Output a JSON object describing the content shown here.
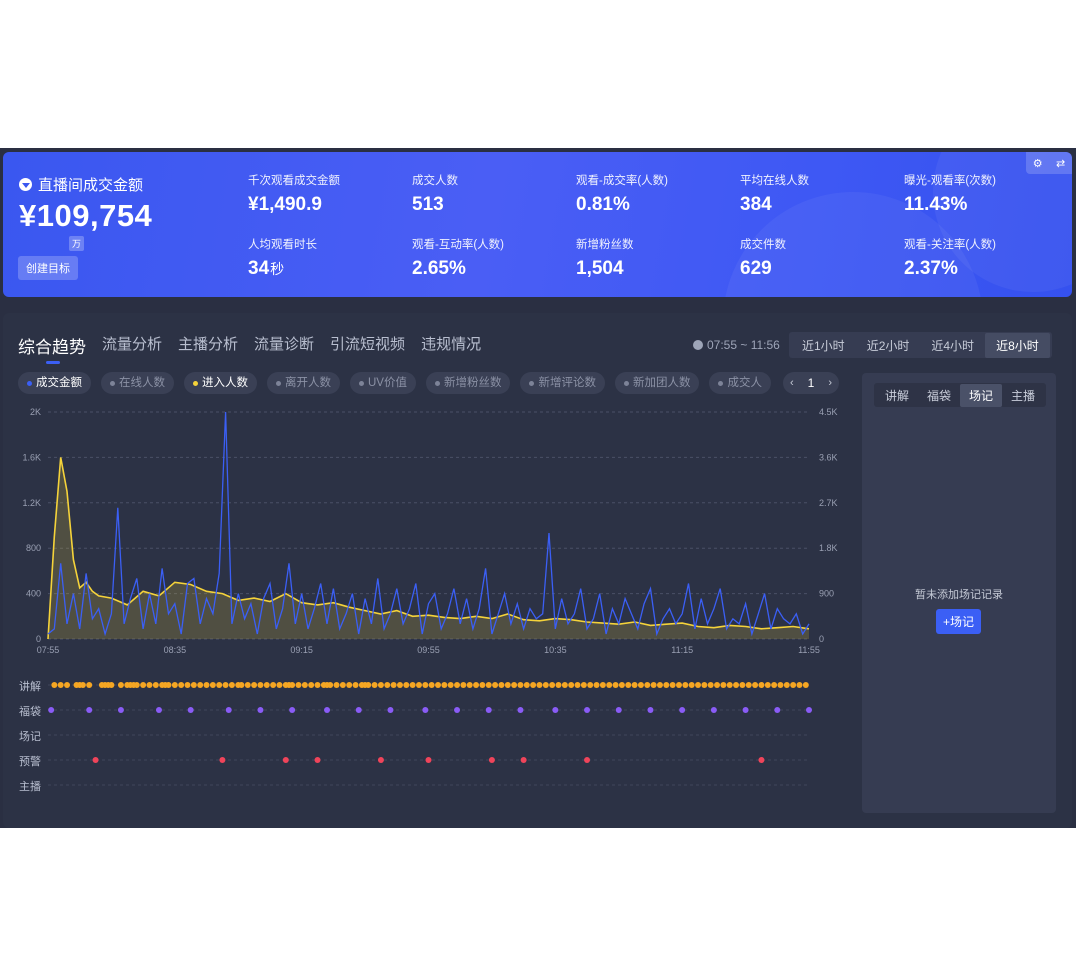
{
  "banner": {
    "gmv_title": "直播间成交金额",
    "gmv_value": "¥109,754",
    "gmv_unit_badge": "万",
    "create_target": "创建目标",
    "metrics": [
      {
        "label": "千次观看成交金额",
        "value": "¥1,490.9",
        "unit": ""
      },
      {
        "label": "成交人数",
        "value": "513",
        "unit": ""
      },
      {
        "label": "观看-成交率(人数)",
        "value": "0.81%",
        "unit": ""
      },
      {
        "label": "平均在线人数",
        "value": "384",
        "unit": ""
      },
      {
        "label": "曝光-观看率(次数)",
        "value": "11.43%",
        "unit": ""
      },
      {
        "label": "人均观看时长",
        "value": "34",
        "unit": "秒"
      },
      {
        "label": "观看-互动率(人数)",
        "value": "2.65%",
        "unit": ""
      },
      {
        "label": "新增粉丝数",
        "value": "1,504",
        "unit": ""
      },
      {
        "label": "成交件数",
        "value": "629",
        "unit": ""
      },
      {
        "label": "观看-关注率(人数)",
        "value": "2.37%",
        "unit": ""
      }
    ],
    "corner_icons": [
      "gear-icon",
      "swap-icon"
    ]
  },
  "tabs": [
    "综合趋势",
    "流量分析",
    "主播分析",
    "流量诊断",
    "引流短视频",
    "违规情况"
  ],
  "time_range": "07:55 ~ 11:56",
  "periods": [
    {
      "label": "近1小时",
      "active": false
    },
    {
      "label": "近2小时",
      "active": false
    },
    {
      "label": "近4小时",
      "active": false
    },
    {
      "label": "近8小时",
      "active": true
    }
  ],
  "chips": [
    {
      "label": "成交金额",
      "on": true,
      "dot": "#3b5ff5"
    },
    {
      "label": "在线人数",
      "on": false,
      "dot": "#7d8398"
    },
    {
      "label": "进入人数",
      "on": true,
      "dot": "#f5d33a"
    },
    {
      "label": "离开人数",
      "on": false,
      "dot": "#7d8398"
    },
    {
      "label": "UV价值",
      "on": false,
      "dot": "#7d8398"
    },
    {
      "label": "新增粉丝数",
      "on": false,
      "dot": "#7d8398"
    },
    {
      "label": "新增评论数",
      "on": false,
      "dot": "#7d8398"
    },
    {
      "label": "新加团人数",
      "on": false,
      "dot": "#7d8398"
    },
    {
      "label": "成交人",
      "on": false,
      "dot": "#7d8398"
    }
  ],
  "pager": {
    "prev": "‹",
    "page": "1",
    "next": "›"
  },
  "side_panel": {
    "tabs": [
      {
        "label": "讲解",
        "active": false
      },
      {
        "label": "福袋",
        "active": false
      },
      {
        "label": "场记",
        "active": true
      },
      {
        "label": "主播",
        "active": false
      }
    ],
    "empty_message": "暂未添加场记记录",
    "add_button": "+场记"
  },
  "event_rows": [
    {
      "label": "讲解",
      "color": "#f5a623",
      "times": [
        2,
        4,
        6,
        9,
        10,
        11,
        13,
        17,
        18,
        19,
        20,
        23,
        25,
        26,
        27,
        28,
        30,
        32,
        34,
        36,
        37,
        38,
        40,
        42,
        44,
        46,
        48,
        50,
        52,
        54,
        56,
        58,
        60,
        61,
        63,
        65,
        67,
        69,
        71,
        73,
        75,
        76,
        77,
        79,
        81,
        83,
        85,
        87,
        88,
        89,
        91,
        93,
        95,
        97,
        99,
        100,
        101,
        103,
        105,
        107,
        109,
        111,
        113,
        115,
        117,
        119,
        121,
        123,
        125,
        127,
        129,
        131,
        133,
        135,
        137,
        139,
        141,
        143,
        145,
        147,
        149,
        151,
        153,
        155,
        157,
        159,
        161,
        163,
        165,
        167,
        169,
        171,
        173,
        175,
        177,
        179,
        181,
        183,
        185,
        187,
        189,
        191,
        193,
        195,
        197,
        199,
        201,
        203,
        205,
        207,
        209,
        211,
        213,
        215,
        217,
        219,
        221,
        223,
        225,
        227,
        229,
        231,
        233,
        235,
        237,
        239
      ]
    },
    {
      "label": "福袋",
      "color": "#8a5cf6",
      "times": [
        1,
        13,
        23,
        35,
        45,
        57,
        67,
        77,
        88,
        98,
        108,
        119,
        129,
        139,
        149,
        160,
        170,
        180,
        190,
        200,
        210,
        220,
        230,
        240
      ]
    },
    {
      "label": "场记",
      "color": "#f5a623",
      "times": []
    },
    {
      "label": "预警",
      "color": "#f0445a",
      "times": [
        15,
        55,
        75,
        85,
        105,
        120,
        140,
        150,
        170,
        225
      ]
    },
    {
      "label": "主播",
      "color": "#f5a623",
      "times": []
    }
  ],
  "chart_data": {
    "type": "line",
    "x_tick_labels": [
      "07:55",
      "08:35",
      "09:15",
      "09:55",
      "10:35",
      "11:15",
      "11:55"
    ],
    "x_range_minutes": [
      0,
      240
    ],
    "y_left": {
      "ticks": [
        "0",
        "400",
        "800",
        "1.2K",
        "1.6K",
        "2K"
      ],
      "range": [
        0,
        2000
      ]
    },
    "y_right": {
      "ticks": [
        "0",
        "900",
        "1.8K",
        "2.7K",
        "3.6K",
        "4.5K"
      ],
      "range": [
        0,
        4500
      ]
    },
    "grid": true,
    "series": [
      {
        "name": "进入人数",
        "axis": "left",
        "color": "#f5d33a",
        "x": [
          0,
          2,
          4,
          6,
          8,
          10,
          12,
          14,
          16,
          20,
          25,
          30,
          35,
          40,
          45,
          50,
          55,
          60,
          65,
          70,
          75,
          80,
          85,
          90,
          95,
          100,
          105,
          110,
          115,
          120,
          125,
          130,
          135,
          140,
          145,
          150,
          155,
          160,
          165,
          170,
          175,
          180,
          185,
          190,
          195,
          200,
          205,
          210,
          215,
          220,
          225,
          230,
          235,
          240
        ],
        "values": [
          0,
          900,
          1600,
          1300,
          700,
          450,
          500,
          420,
          380,
          360,
          300,
          420,
          380,
          500,
          480,
          420,
          400,
          340,
          360,
          330,
          400,
          320,
          300,
          320,
          280,
          250,
          220,
          250,
          200,
          210,
          190,
          180,
          200,
          180,
          220,
          170,
          160,
          180,
          170,
          150,
          140,
          130,
          150,
          120,
          130,
          140,
          110,
          100,
          120,
          110,
          90,
          100,
          110,
          90
        ]
      },
      {
        "name": "成交金额",
        "axis": "right",
        "color": "#3b5ff5",
        "x": [
          0,
          2,
          4,
          6,
          8,
          10,
          12,
          14,
          16,
          18,
          20,
          22,
          24,
          26,
          28,
          30,
          32,
          34,
          36,
          38,
          40,
          42,
          44,
          46,
          48,
          50,
          52,
          54,
          56,
          58,
          60,
          62,
          64,
          66,
          68,
          70,
          72,
          74,
          76,
          78,
          80,
          82,
          84,
          86,
          88,
          90,
          92,
          94,
          96,
          98,
          100,
          102,
          104,
          106,
          108,
          110,
          112,
          114,
          116,
          118,
          120,
          122,
          124,
          126,
          128,
          130,
          132,
          134,
          136,
          138,
          140,
          142,
          144,
          146,
          148,
          150,
          152,
          154,
          156,
          158,
          160,
          162,
          164,
          166,
          168,
          170,
          172,
          174,
          176,
          178,
          180,
          182,
          184,
          186,
          188,
          190,
          192,
          194,
          196,
          198,
          200,
          202,
          204,
          206,
          208,
          210,
          212,
          214,
          216,
          218,
          220,
          222,
          224,
          226,
          228,
          230,
          232,
          234,
          236,
          238,
          240
        ],
        "values": [
          100,
          200,
          1500,
          300,
          900,
          200,
          1300,
          400,
          600,
          100,
          500,
          2600,
          300,
          800,
          1200,
          200,
          900,
          300,
          1400,
          500,
          700,
          100,
          1100,
          1200,
          300,
          800,
          500,
          1300,
          4500,
          300,
          900,
          400,
          700,
          100,
          800,
          1100,
          200,
          600,
          1500,
          300,
          900,
          200,
          600,
          1100,
          300,
          1000,
          200,
          500,
          900,
          100,
          800,
          300,
          1200,
          200,
          500,
          1000,
          300,
          600,
          1100,
          100,
          700,
          900,
          200,
          500,
          1000,
          300,
          800,
          200,
          600,
          1400,
          100,
          500,
          900,
          300,
          700,
          200,
          600,
          400,
          500,
          2100,
          200,
          800,
          300,
          500,
          1000,
          200,
          400,
          900,
          100,
          600,
          300,
          800,
          500,
          200,
          700,
          1000,
          100,
          400,
          600,
          300,
          500,
          1100,
          200,
          800,
          300,
          600,
          1000,
          200,
          400,
          300,
          700,
          100,
          500,
          900,
          200,
          600,
          400,
          300,
          500,
          100,
          300
        ]
      }
    ]
  }
}
